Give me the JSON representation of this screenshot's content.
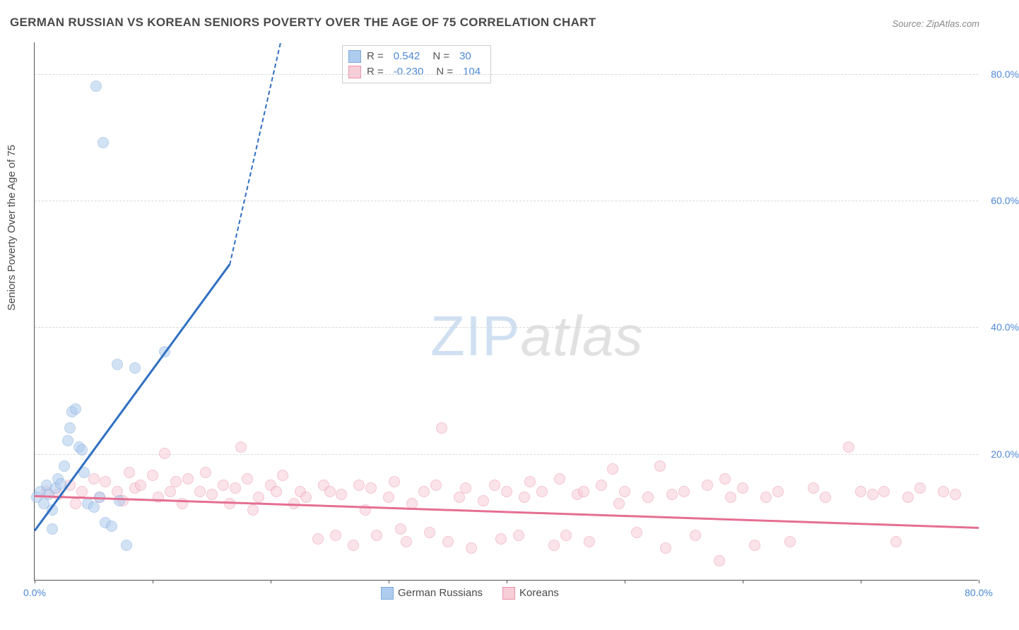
{
  "title": "GERMAN RUSSIAN VS KOREAN SENIORS POVERTY OVER THE AGE OF 75 CORRELATION CHART",
  "source_label": "Source: ZipAtlas.com",
  "y_axis_title": "Seniors Poverty Over the Age of 75",
  "watermark": {
    "zip": "ZIP",
    "atlas": "atlas"
  },
  "chart": {
    "type": "scatter",
    "xlim": [
      0,
      80
    ],
    "ylim": [
      0,
      85
    ],
    "x_ticks": [
      0,
      10,
      20,
      30,
      40,
      50,
      60,
      70,
      80
    ],
    "y_ticks": [
      20,
      40,
      60,
      80
    ],
    "x_tick_labels": {
      "0": "0.0%",
      "80": "80.0%"
    },
    "y_tick_labels": {
      "20": "20.0%",
      "40": "40.0%",
      "60": "60.0%",
      "80": "80.0%"
    },
    "grid_color": "#d8d8d8",
    "background_color": "#ffffff",
    "axis_color": "#555555",
    "tick_label_color": "#4d88d6",
    "tick_label_fontsize": 14,
    "title_fontsize": 17,
    "title_color": "#4a4a4a",
    "marker_radius": 8,
    "marker_opacity": 0.55,
    "line_width_solid": 3,
    "line_width_dashed": 2
  },
  "series": {
    "german_russians": {
      "label": "German Russians",
      "color_fill": "#aeccee",
      "color_stroke": "#7fa9d9",
      "line_color": "#2f6fc1",
      "R": "0.542",
      "N": "30",
      "trend": {
        "x1": 0,
        "y1": 8,
        "x2_solid": 16.5,
        "y2_solid": 50,
        "x2_dash": 20.8,
        "y2_dash": 85
      },
      "points": [
        [
          0.2,
          13
        ],
        [
          0.5,
          14
        ],
        [
          0.8,
          12
        ],
        [
          1.0,
          15
        ],
        [
          1.2,
          13.5
        ],
        [
          1.5,
          11
        ],
        [
          1.8,
          14.5
        ],
        [
          2.0,
          16
        ],
        [
          2.2,
          15.2
        ],
        [
          2.5,
          18
        ],
        [
          2.8,
          22
        ],
        [
          3.0,
          24
        ],
        [
          3.2,
          26.5
        ],
        [
          3.5,
          27
        ],
        [
          3.8,
          21
        ],
        [
          4.0,
          20.5
        ],
        [
          4.2,
          17
        ],
        [
          4.5,
          12
        ],
        [
          5.0,
          11.5
        ],
        [
          5.5,
          13
        ],
        [
          6.0,
          9
        ],
        [
          6.5,
          8.5
        ],
        [
          7.2,
          12.5
        ],
        [
          7.8,
          5.5
        ],
        [
          5.2,
          78
        ],
        [
          5.8,
          69
        ],
        [
          8.5,
          33.5
        ],
        [
          11.0,
          36
        ],
        [
          7.0,
          34
        ],
        [
          1.5,
          8
        ]
      ]
    },
    "koreans": {
      "label": "Koreans",
      "color_fill": "#f7cdd8",
      "color_stroke": "#ea94ad",
      "line_color": "#e56f91",
      "R": "-0.230",
      "N": "104",
      "trend": {
        "x1": 0,
        "y1": 13.5,
        "x2": 80,
        "y2": 8.5
      },
      "points": [
        [
          1,
          14
        ],
        [
          2,
          13.5
        ],
        [
          3,
          15
        ],
        [
          3.5,
          12
        ],
        [
          4,
          14
        ],
        [
          5,
          16
        ],
        [
          5.5,
          13
        ],
        [
          6,
          15.5
        ],
        [
          7,
          14
        ],
        [
          7.5,
          12.5
        ],
        [
          8,
          17
        ],
        [
          8.5,
          14.5
        ],
        [
          9,
          15
        ],
        [
          10,
          16.5
        ],
        [
          10.5,
          13
        ],
        [
          11,
          20
        ],
        [
          11.5,
          14
        ],
        [
          12,
          15.5
        ],
        [
          12.5,
          12
        ],
        [
          13,
          16
        ],
        [
          14,
          14
        ],
        [
          14.5,
          17
        ],
        [
          15,
          13.5
        ],
        [
          16,
          15
        ],
        [
          16.5,
          12
        ],
        [
          17,
          14.5
        ],
        [
          17.5,
          21
        ],
        [
          18,
          16
        ],
        [
          18.5,
          11
        ],
        [
          19,
          13
        ],
        [
          20,
          15
        ],
        [
          20.5,
          14
        ],
        [
          21,
          16.5
        ],
        [
          22,
          12
        ],
        [
          22.5,
          14
        ],
        [
          23,
          13
        ],
        [
          24,
          6.5
        ],
        [
          24.5,
          15
        ],
        [
          25,
          14
        ],
        [
          25.5,
          7
        ],
        [
          26,
          13.5
        ],
        [
          27,
          5.5
        ],
        [
          27.5,
          15
        ],
        [
          28,
          11
        ],
        [
          28.5,
          14.5
        ],
        [
          29,
          7
        ],
        [
          30,
          13
        ],
        [
          30.5,
          15.5
        ],
        [
          31,
          8
        ],
        [
          31.5,
          6
        ],
        [
          32,
          12
        ],
        [
          33,
          14
        ],
        [
          33.5,
          7.5
        ],
        [
          34,
          15
        ],
        [
          34.5,
          24
        ],
        [
          35,
          6
        ],
        [
          36,
          13
        ],
        [
          36.5,
          14.5
        ],
        [
          37,
          5
        ],
        [
          38,
          12.5
        ],
        [
          39,
          15
        ],
        [
          39.5,
          6.5
        ],
        [
          40,
          14
        ],
        [
          41,
          7
        ],
        [
          41.5,
          13
        ],
        [
          42,
          15.5
        ],
        [
          43,
          14
        ],
        [
          44,
          5.5
        ],
        [
          44.5,
          16
        ],
        [
          45,
          7
        ],
        [
          46,
          13.5
        ],
        [
          46.5,
          14
        ],
        [
          47,
          6
        ],
        [
          48,
          15
        ],
        [
          49,
          17.5
        ],
        [
          49.5,
          12
        ],
        [
          50,
          14
        ],
        [
          51,
          7.5
        ],
        [
          52,
          13
        ],
        [
          53,
          18
        ],
        [
          53.5,
          5
        ],
        [
          54,
          13.5
        ],
        [
          55,
          14
        ],
        [
          56,
          7
        ],
        [
          57,
          15
        ],
        [
          58,
          3
        ],
        [
          58.5,
          16
        ],
        [
          59,
          13
        ],
        [
          60,
          14.5
        ],
        [
          61,
          5.5
        ],
        [
          62,
          13
        ],
        [
          63,
          14
        ],
        [
          64,
          6
        ],
        [
          66,
          14.5
        ],
        [
          67,
          13
        ],
        [
          69,
          21
        ],
        [
          70,
          14
        ],
        [
          71,
          13.5
        ],
        [
          72,
          14
        ],
        [
          73,
          6
        ],
        [
          74,
          13
        ],
        [
          75,
          14.5
        ],
        [
          77,
          14
        ],
        [
          78,
          13.5
        ]
      ]
    }
  },
  "stats_box": {
    "R_label": "R =",
    "N_label": "N ="
  },
  "legend": {
    "left_label": "German Russians",
    "right_label": "Koreans"
  }
}
